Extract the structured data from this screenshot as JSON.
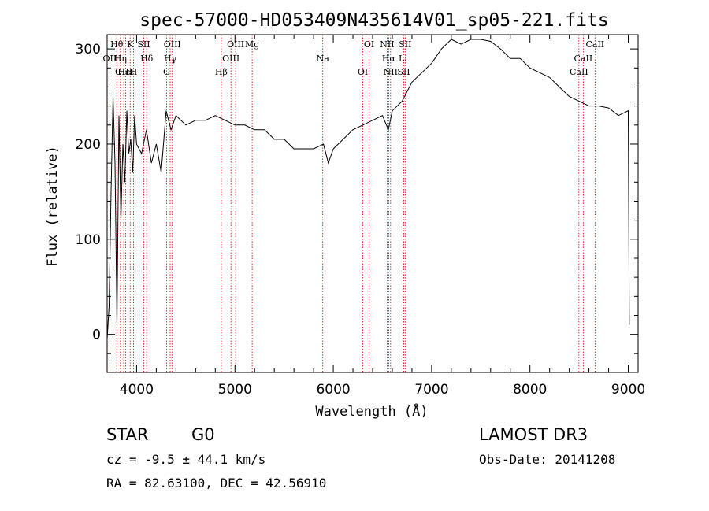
{
  "chart_data": {
    "type": "line",
    "title": "spec-57000-HD053409N435614V01_sp05-221.fits",
    "xlabel": "Wavelength (Å)",
    "ylabel": "Flux (relative)",
    "xlim": [
      3700,
      9100
    ],
    "ylim": [
      -40,
      315
    ],
    "xticks": [
      4000,
      5000,
      6000,
      7000,
      8000,
      9000
    ],
    "yticks": [
      0,
      100,
      200,
      300
    ],
    "series": [
      {
        "name": "flux",
        "x": [
          3700,
          3720,
          3740,
          3760,
          3780,
          3800,
          3820,
          3840,
          3860,
          3880,
          3900,
          3920,
          3940,
          3960,
          3980,
          4000,
          4050,
          4100,
          4150,
          4200,
          4250,
          4300,
          4350,
          4400,
          4450,
          4500,
          4600,
          4700,
          4800,
          4900,
          5000,
          5100,
          5200,
          5300,
          5400,
          5500,
          5600,
          5700,
          5800,
          5900,
          5950,
          6000,
          6100,
          6200,
          6300,
          6400,
          6500,
          6560,
          6600,
          6700,
          6800,
          6900,
          7000,
          7100,
          7200,
          7300,
          7400,
          7500,
          7600,
          7700,
          7800,
          7900,
          8000,
          8100,
          8200,
          8300,
          8400,
          8500,
          8600,
          8700,
          8800,
          8900,
          9000,
          9010
        ],
        "y": [
          -5,
          30,
          150,
          250,
          180,
          10,
          230,
          120,
          200,
          160,
          235,
          190,
          205,
          170,
          230,
          200,
          190,
          215,
          180,
          200,
          170,
          235,
          215,
          230,
          225,
          220,
          225,
          225,
          230,
          225,
          220,
          220,
          215,
          215,
          205,
          205,
          195,
          195,
          195,
          200,
          180,
          195,
          205,
          215,
          220,
          225,
          230,
          215,
          235,
          245,
          265,
          275,
          285,
          300,
          310,
          305,
          310,
          310,
          308,
          300,
          290,
          290,
          280,
          275,
          270,
          260,
          250,
          245,
          240,
          240,
          238,
          230,
          235,
          10
        ]
      }
    ],
    "line_markers": [
      {
        "label": "Hθ",
        "x": 3798
      },
      {
        "label": "OII",
        "x": 3727
      },
      {
        "label": "OIII",
        "x": 3869
      },
      {
        "label": "K",
        "x": 3934
      },
      {
        "label": "Hδ",
        "x": 4102
      },
      {
        "label": "HeI",
        "x": 3889
      },
      {
        "label": "SII",
        "x": 4072
      },
      {
        "label": "Hη",
        "x": 3835
      },
      {
        "label": "H",
        "x": 3969
      },
      {
        "label": "OIII",
        "x": 4363
      },
      {
        "label": "Hγ",
        "x": 4341
      },
      {
        "label": "G",
        "x": 4304
      },
      {
        "label": "OIII",
        "x": 5007
      },
      {
        "label": "OIII",
        "x": 4959
      },
      {
        "label": "Hβ",
        "x": 4861
      },
      {
        "label": "Mg",
        "x": 5175
      },
      {
        "label": "Na",
        "x": 5893
      },
      {
        "label": "OI",
        "x": 6300
      },
      {
        "label": "OI",
        "x": 6364
      },
      {
        "label": "Hα",
        "x": 6563
      },
      {
        "label": "SII",
        "x": 6716
      },
      {
        "label": "NII",
        "x": 6548
      },
      {
        "label": "Li",
        "x": 6708
      },
      {
        "label": "NII",
        "x": 6583
      },
      {
        "label": "SII",
        "x": 6731
      },
      {
        "label": "CaII",
        "x": 8542
      },
      {
        "label": "CaII",
        "x": 8498
      },
      {
        "label": "CaII",
        "x": 8662
      }
    ]
  },
  "info": {
    "class": "STAR",
    "subclass": "G0",
    "redshift": "cz = -9.5 ± 44.1 km/s",
    "coords": "RA =  82.63100, DEC =  42.56910",
    "survey": "LAMOST DR3",
    "obsdate": "Obs-Date: 20141208"
  },
  "colors": {
    "spectrum": "#000000",
    "marker_line": "#cc0000",
    "axis": "#000000"
  }
}
